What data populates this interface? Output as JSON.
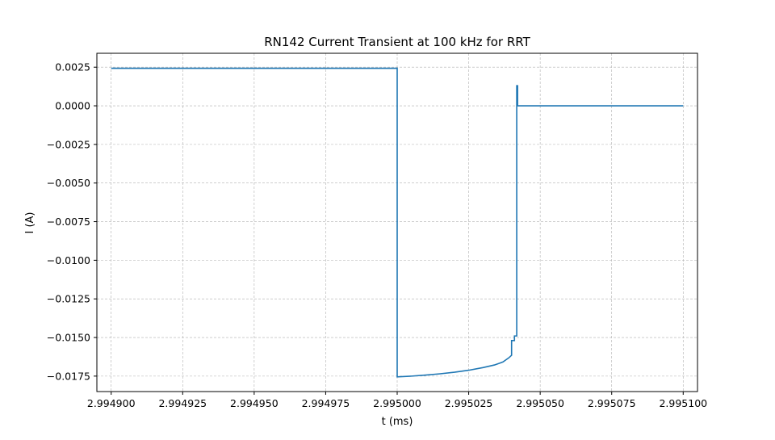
{
  "chart_data": {
    "type": "line",
    "title": "RN142 Current Transient at 100 kHz for RRT",
    "xlabel": "t (ms)",
    "ylabel": "I (A)",
    "xlim": [
      2.994895,
      2.995105
    ],
    "ylim": [
      -0.0185,
      0.0034
    ],
    "grid": true,
    "line_color": "#1f77b4",
    "xticks": [
      2.9949,
      2.994925,
      2.99495,
      2.994975,
      2.995,
      2.995025,
      2.99505,
      2.995075,
      2.9951
    ],
    "xtick_labels": [
      "2.994900",
      "2.994925",
      "2.994950",
      "2.994975",
      "2.995000",
      "2.995025",
      "2.995050",
      "2.995075",
      "2.995100"
    ],
    "yticks": [
      0.0025,
      0.0,
      -0.0025,
      -0.005,
      -0.0075,
      -0.01,
      -0.0125,
      -0.015,
      -0.0175
    ],
    "ytick_labels": [
      "0.0025",
      "0.0000",
      "−0.0025",
      "−0.0050",
      "−0.0075",
      "−0.0100",
      "−0.0125",
      "−0.0150",
      "−0.0175"
    ],
    "series": [
      {
        "points": [
          [
            2.9949,
            0.00243
          ],
          [
            2.995,
            0.00243
          ],
          [
            2.995,
            -0.01755
          ],
          [
            2.995005,
            -0.0175
          ],
          [
            2.99501,
            -0.01743
          ],
          [
            2.995015,
            -0.01735
          ],
          [
            2.99502,
            -0.01725
          ],
          [
            2.995025,
            -0.01712
          ],
          [
            2.99503,
            -0.01695
          ],
          [
            2.995034,
            -0.01678
          ],
          [
            2.995036,
            -0.01665
          ],
          [
            2.995037,
            -0.01658
          ],
          [
            2.995038,
            -0.01645
          ],
          [
            2.995039,
            -0.01632
          ],
          [
            2.99504,
            -0.01615
          ],
          [
            2.99504,
            -0.0152
          ],
          [
            2.995041,
            -0.0152
          ],
          [
            2.995041,
            -0.0149
          ],
          [
            2.9950418,
            -0.0149
          ],
          [
            2.9950418,
            0.0013
          ],
          [
            2.9950421,
            0.0013
          ],
          [
            2.9950421,
            0.0
          ],
          [
            2.9951,
            0.0
          ]
        ]
      }
    ]
  }
}
